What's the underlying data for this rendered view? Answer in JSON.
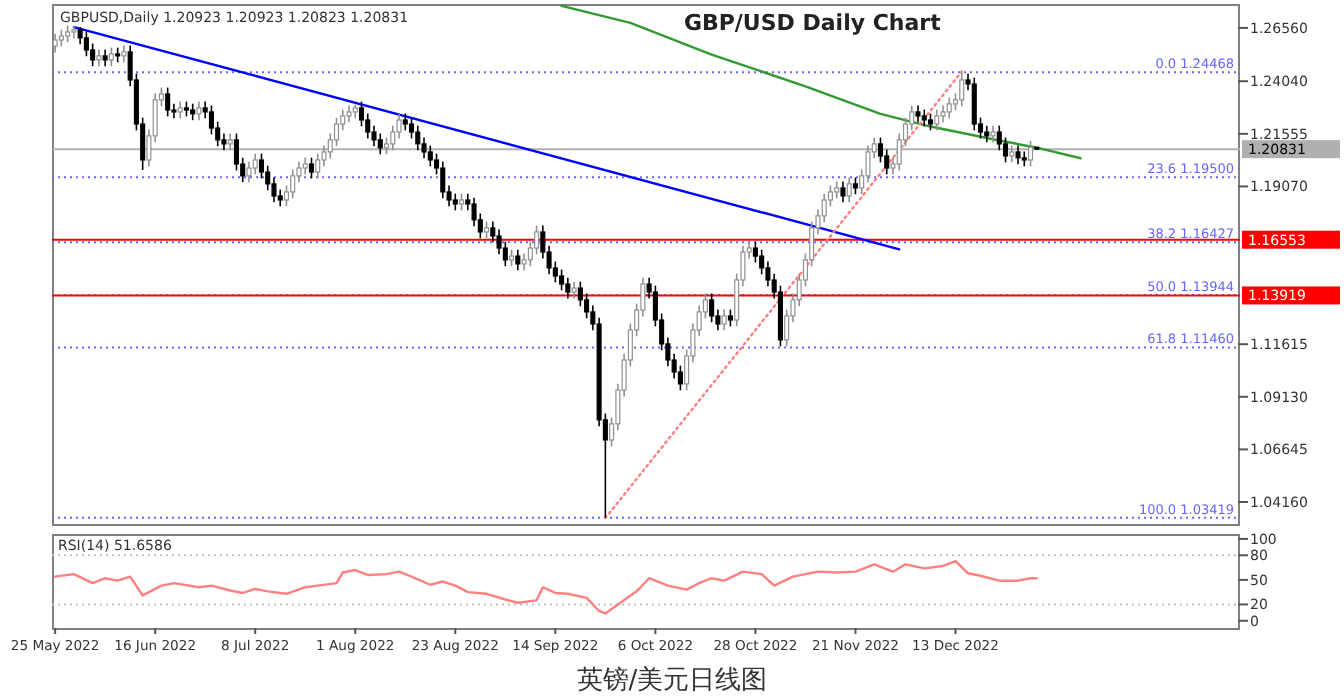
{
  "chart_data": [
    {
      "type": "candlestick",
      "title": "GBP/USD Daily Chart",
      "annotations": [
        "GBPUSD,Daily  1.20923 1.20923 1.20823 1.20831",
        "英镑/美元日线图"
      ],
      "categories": [
        null,
        null,
        null,
        null,
        null,
        null,
        null,
        null,
        null,
        null,
        null,
        null,
        null,
        null,
        null,
        null,
        null,
        null,
        null,
        null,
        null,
        null,
        null,
        null,
        null,
        null,
        null,
        null,
        null,
        null,
        null,
        null,
        null,
        null,
        null,
        null,
        null,
        null,
        null,
        null,
        null,
        null,
        null,
        null,
        null,
        null,
        null,
        null,
        null,
        null,
        null,
        null,
        null,
        null,
        null,
        null,
        null,
        null,
        null,
        null,
        null,
        null,
        null,
        null,
        null,
        null,
        null,
        null,
        null,
        null,
        null,
        null,
        null,
        null,
        null,
        null,
        null,
        null,
        null,
        null,
        null,
        null,
        null,
        null,
        null,
        null,
        null,
        null,
        null,
        null,
        null,
        null,
        null,
        null,
        null,
        null,
        null,
        null,
        null,
        null,
        null,
        null,
        null,
        null,
        null,
        null,
        null,
        null,
        null,
        null,
        null,
        null,
        null,
        null,
        null,
        null,
        null,
        null,
        null,
        null,
        null,
        null,
        null,
        null,
        null,
        null,
        null,
        null,
        null,
        null,
        null,
        null,
        null,
        null,
        null,
        null,
        null,
        null,
        null,
        null,
        null,
        null,
        null,
        null,
        null,
        null,
        null,
        null,
        null,
        null,
        null,
        null,
        null,
        null,
        null,
        null,
        null,
        null,
        null,
        null,
        null,
        null,
        null,
        null,
        null,
        null,
        null,
        null,
        null,
        null,
        null,
        null,
        null,
        null,
        null,
        null,
        null,
        null,
        null,
        null,
        null,
        null,
        null,
        null,
        null,
        null,
        null,
        null,
        null,
        null
      ],
      "ohlc": [
        [
          1.257,
          1.2629,
          1.254,
          1.2599
        ],
        [
          1.2599,
          1.2648,
          1.2569,
          1.2618
        ],
        [
          1.2618,
          1.2667,
          1.2588,
          1.2637
        ],
        [
          1.2637,
          1.2666,
          1.2607,
          1.2647
        ],
        [
          1.2647,
          1.266,
          1.2579,
          1.2609
        ],
        [
          1.2609,
          1.2639,
          1.2522,
          1.2552
        ],
        [
          1.2552,
          1.2582,
          1.2475,
          1.2505
        ],
        [
          1.2505,
          1.2554,
          1.2475,
          1.2524
        ],
        [
          1.2524,
          1.2554,
          1.2475,
          1.2505
        ],
        [
          1.2505,
          1.2563,
          1.2475,
          1.2533
        ],
        [
          1.2533,
          1.2563,
          1.2494,
          1.2524
        ],
        [
          1.2524,
          1.2573,
          1.2494,
          1.2543
        ],
        [
          1.2543,
          1.2573,
          1.238,
          1.241
        ],
        [
          1.241,
          1.244,
          1.2172,
          1.2202
        ],
        [
          1.2202,
          1.2232,
          1.1985,
          1.2032
        ],
        [
          1.2032,
          1.2176,
          1.2002,
          1.2146
        ],
        [
          1.2146,
          1.2346,
          1.2116,
          1.2316
        ],
        [
          1.2316,
          1.2374,
          1.2286,
          1.2344
        ],
        [
          1.2344,
          1.2374,
          1.2238,
          1.2268
        ],
        [
          1.2268,
          1.2298,
          1.2229,
          1.2259
        ],
        [
          1.2259,
          1.2308,
          1.2229,
          1.2278
        ],
        [
          1.2278,
          1.2308,
          1.2238,
          1.2268
        ],
        [
          1.2268,
          1.2298,
          1.222,
          1.225
        ],
        [
          1.225,
          1.2308,
          1.222,
          1.2278
        ],
        [
          1.2278,
          1.2308,
          1.2229,
          1.2259
        ],
        [
          1.2259,
          1.2289,
          1.2153,
          1.2183
        ],
        [
          1.2183,
          1.2213,
          1.2097,
          1.2127
        ],
        [
          1.2127,
          1.2157,
          1.2078,
          1.2108
        ],
        [
          1.2108,
          1.2157,
          1.2078,
          1.2127
        ],
        [
          1.2127,
          1.2157,
          1.1983,
          1.2013
        ],
        [
          1.2013,
          1.2043,
          1.1927,
          1.1957
        ],
        [
          1.1957,
          1.2024,
          1.1927,
          1.1994
        ],
        [
          1.1994,
          1.2062,
          1.1964,
          1.2032
        ],
        [
          1.2032,
          1.2062,
          1.1945,
          1.1975
        ],
        [
          1.1975,
          1.2005,
          1.1889,
          1.1919
        ],
        [
          1.1919,
          1.1949,
          1.1832,
          1.1862
        ],
        [
          1.1862,
          1.1892,
          1.1813,
          1.1843
        ],
        [
          1.1843,
          1.1911,
          1.1813,
          1.1881
        ],
        [
          1.1881,
          1.1987,
          1.1851,
          1.1957
        ],
        [
          1.1957,
          1.2024,
          1.1927,
          1.1994
        ],
        [
          1.1994,
          1.2043,
          1.1964,
          1.2013
        ],
        [
          1.2013,
          1.2043,
          1.1945,
          1.1975
        ],
        [
          1.1975,
          1.2062,
          1.1945,
          1.2032
        ],
        [
          1.2032,
          1.21,
          1.2002,
          1.207
        ],
        [
          1.207,
          1.2157,
          1.204,
          1.2127
        ],
        [
          1.2127,
          1.2232,
          1.2097,
          1.2202
        ],
        [
          1.2202,
          1.227,
          1.2172,
          1.224
        ],
        [
          1.224,
          1.2289,
          1.221,
          1.2259
        ],
        [
          1.2259,
          1.2293,
          1.2229,
          1.2278
        ],
        [
          1.2278,
          1.2308,
          1.2191,
          1.2221
        ],
        [
          1.2221,
          1.2251,
          1.2134,
          1.2164
        ],
        [
          1.2164,
          1.2194,
          1.2097,
          1.2127
        ],
        [
          1.2127,
          1.2157,
          1.2059,
          1.2089
        ],
        [
          1.2089,
          1.2138,
          1.2059,
          1.2108
        ],
        [
          1.2108,
          1.2194,
          1.2078,
          1.2164
        ],
        [
          1.2164,
          1.2251,
          1.2134,
          1.2221
        ],
        [
          1.2221,
          1.2251,
          1.2172,
          1.2202
        ],
        [
          1.2202,
          1.2232,
          1.2134,
          1.2164
        ],
        [
          1.2164,
          1.2194,
          1.2078,
          1.2108
        ],
        [
          1.2108,
          1.2138,
          1.204,
          1.207
        ],
        [
          1.207,
          1.21,
          1.2002,
          1.2032
        ],
        [
          1.2032,
          1.2062,
          1.1964,
          1.1994
        ],
        [
          1.1994,
          1.2024,
          1.1851,
          1.1881
        ],
        [
          1.1881,
          1.1911,
          1.1813,
          1.1843
        ],
        [
          1.1843,
          1.1873,
          1.1794,
          1.1824
        ],
        [
          1.1824,
          1.1873,
          1.1794,
          1.1843
        ],
        [
          1.1843,
          1.1873,
          1.1794,
          1.1824
        ],
        [
          1.1824,
          1.1854,
          1.1719,
          1.1749
        ],
        [
          1.1749,
          1.1779,
          1.1662,
          1.1692
        ],
        [
          1.1692,
          1.1741,
          1.1662,
          1.1711
        ],
        [
          1.1711,
          1.1741,
          1.1643,
          1.1673
        ],
        [
          1.1673,
          1.1703,
          1.1586,
          1.1616
        ],
        [
          1.1616,
          1.1646,
          1.153,
          1.156
        ],
        [
          1.156,
          1.1608,
          1.153,
          1.1578
        ],
        [
          1.1578,
          1.1608,
          1.1511,
          1.1541
        ],
        [
          1.1541,
          1.159,
          1.1511,
          1.156
        ],
        [
          1.156,
          1.1646,
          1.153,
          1.1616
        ],
        [
          1.1616,
          1.1722,
          1.1586,
          1.1692
        ],
        [
          1.1692,
          1.1722,
          1.1567,
          1.1597
        ],
        [
          1.1597,
          1.1627,
          1.1492,
          1.1522
        ],
        [
          1.1522,
          1.1552,
          1.1454,
          1.1484
        ],
        [
          1.1484,
          1.1514,
          1.1416,
          1.1446
        ],
        [
          1.1446,
          1.1476,
          1.1378,
          1.1408
        ],
        [
          1.1408,
          1.1457,
          1.1378,
          1.1427
        ],
        [
          1.1427,
          1.1457,
          1.1341,
          1.1371
        ],
        [
          1.1371,
          1.1401,
          1.1284,
          1.1314
        ],
        [
          1.1314,
          1.1344,
          1.1227,
          1.1257
        ],
        [
          1.1257,
          1.1287,
          1.0774,
          1.0804
        ],
        [
          1.0804,
          1.0834,
          1.0342,
          1.0709
        ],
        [
          1.0709,
          1.0815,
          1.0679,
          1.0785
        ],
        [
          1.0785,
          1.0975,
          1.0755,
          1.0945
        ],
        [
          1.0945,
          1.1117,
          1.0915,
          1.1087
        ],
        [
          1.1087,
          1.1259,
          1.1057,
          1.1229
        ],
        [
          1.1229,
          1.1353,
          1.1199,
          1.1323
        ],
        [
          1.1323,
          1.1476,
          1.1293,
          1.1446
        ],
        [
          1.1446,
          1.1476,
          1.1378,
          1.1408
        ],
        [
          1.1408,
          1.1438,
          1.1246,
          1.1276
        ],
        [
          1.1276,
          1.1306,
          1.1133,
          1.1163
        ],
        [
          1.1163,
          1.1193,
          1.1057,
          1.1087
        ],
        [
          1.1087,
          1.1117,
          1.1,
          1.103
        ],
        [
          1.103,
          1.106,
          1.0944,
          1.0974
        ],
        [
          1.0974,
          1.1136,
          1.0944,
          1.1106
        ],
        [
          1.1106,
          1.1259,
          1.1076,
          1.1229
        ],
        [
          1.1229,
          1.1344,
          1.1199,
          1.1314
        ],
        [
          1.1314,
          1.1401,
          1.1284,
          1.1371
        ],
        [
          1.1371,
          1.1401,
          1.1265,
          1.1295
        ],
        [
          1.1295,
          1.1325,
          1.1227,
          1.1257
        ],
        [
          1.1257,
          1.1325,
          1.1227,
          1.1295
        ],
        [
          1.1295,
          1.1325,
          1.1246,
          1.1276
        ],
        [
          1.1276,
          1.1495,
          1.1246,
          1.1465
        ],
        [
          1.1465,
          1.1627,
          1.1435,
          1.1597
        ],
        [
          1.1597,
          1.1646,
          1.1567,
          1.1616
        ],
        [
          1.1616,
          1.1646,
          1.1548,
          1.1578
        ],
        [
          1.1578,
          1.1608,
          1.1492,
          1.1522
        ],
        [
          1.1522,
          1.1552,
          1.1435,
          1.1465
        ],
        [
          1.1465,
          1.1495,
          1.1378,
          1.1408
        ],
        [
          1.1408,
          1.1438,
          1.1152,
          1.1182
        ],
        [
          1.1182,
          1.1325,
          1.1152,
          1.1295
        ],
        [
          1.1295,
          1.1401,
          1.1265,
          1.1371
        ],
        [
          1.1371,
          1.1495,
          1.1341,
          1.1465
        ],
        [
          1.1465,
          1.159,
          1.1435,
          1.156
        ],
        [
          1.156,
          1.1741,
          1.153,
          1.1711
        ],
        [
          1.1711,
          1.1798,
          1.1681,
          1.1768
        ],
        [
          1.1768,
          1.1873,
          1.1738,
          1.1843
        ],
        [
          1.1843,
          1.1911,
          1.1813,
          1.1881
        ],
        [
          1.1881,
          1.193,
          1.1851,
          1.19
        ],
        [
          1.19,
          1.193,
          1.1832,
          1.1862
        ],
        [
          1.1862,
          1.1949,
          1.1832,
          1.1919
        ],
        [
          1.1919,
          1.1949,
          1.187,
          1.19
        ],
        [
          1.19,
          1.1987,
          1.187,
          1.1957
        ],
        [
          1.1957,
          1.21,
          1.1927,
          1.207
        ],
        [
          1.207,
          1.2138,
          1.204,
          1.2108
        ],
        [
          1.2108,
          1.2138,
          1.2021,
          1.2051
        ],
        [
          1.2051,
          1.2081,
          1.1964,
          1.1994
        ],
        [
          1.1994,
          1.2043,
          1.1964,
          1.2013
        ],
        [
          1.2013,
          1.2157,
          1.1983,
          1.2127
        ],
        [
          1.2127,
          1.2232,
          1.2097,
          1.2202
        ],
        [
          1.2202,
          1.2289,
          1.2172,
          1.2259
        ],
        [
          1.2259,
          1.2289,
          1.221,
          1.224
        ],
        [
          1.224,
          1.227,
          1.2191,
          1.2221
        ],
        [
          1.2221,
          1.2251,
          1.2172,
          1.2202
        ],
        [
          1.2202,
          1.227,
          1.2172,
          1.224
        ],
        [
          1.224,
          1.2289,
          1.221,
          1.2259
        ],
        [
          1.2259,
          1.2327,
          1.2229,
          1.2297
        ],
        [
          1.2297,
          1.2346,
          1.2267,
          1.2316
        ],
        [
          1.2316,
          1.2446,
          1.2286,
          1.241
        ],
        [
          1.241,
          1.244,
          1.2361,
          1.2391
        ],
        [
          1.2391,
          1.2421,
          1.2172,
          1.2202
        ],
        [
          1.2202,
          1.2232,
          1.2134,
          1.2164
        ],
        [
          1.2164,
          1.2194,
          1.2116,
          1.2146
        ],
        [
          1.2146,
          1.2194,
          1.2116,
          1.2164
        ],
        [
          1.2164,
          1.2194,
          1.2078,
          1.2108
        ],
        [
          1.2108,
          1.2138,
          1.2021,
          1.2051
        ],
        [
          1.2051,
          1.21,
          1.2021,
          1.207
        ],
        [
          1.207,
          1.21,
          1.2012,
          1.2042
        ],
        [
          1.2042,
          1.2072,
          1.2002,
          1.2032
        ],
        [
          1.2032,
          1.2122,
          1.2002,
          1.2092
        ],
        [
          1.20923,
          1.20923,
          1.20823,
          1.20831
        ],
        null,
        null,
        null,
        null,
        null,
        null,
        null,
        null,
        null,
        null,
        null,
        null,
        null,
        null,
        null,
        null,
        null,
        null,
        null,
        null,
        null,
        null,
        null,
        null,
        null,
        null,
        null,
        null,
        null,
        null,
        null,
        null
      ],
      "series": [
        {
          "type": "line",
          "color": "#0000ff",
          "line_style": "solid",
          "values": [
            null,
            null,
            null,
            1.266,
            null,
            null,
            null,
            null,
            null,
            null,
            null,
            null,
            null,
            null,
            null,
            null,
            null,
            null,
            null,
            null,
            null,
            null,
            null,
            null,
            null,
            null,
            null,
            null,
            null,
            null,
            null,
            null,
            null,
            null,
            null,
            null,
            null,
            null,
            null,
            null,
            null,
            null,
            null,
            null,
            null,
            null,
            null,
            null,
            null,
            null,
            null,
            null,
            null,
            null,
            null,
            null,
            null,
            null,
            null,
            null,
            null,
            null,
            null,
            null,
            null,
            null,
            null,
            null,
            null,
            null,
            null,
            null,
            null,
            null,
            null,
            null,
            null,
            null,
            null,
            null,
            null,
            null,
            null,
            null,
            null,
            null,
            null,
            null,
            null,
            null,
            null,
            null,
            null,
            null,
            null,
            null,
            null,
            null,
            null,
            null,
            null,
            null,
            null,
            null,
            null,
            null,
            null,
            null,
            null,
            null,
            null,
            null,
            null,
            null,
            null,
            null,
            null,
            null,
            null,
            null,
            null,
            null,
            null,
            null,
            null,
            null,
            null,
            null,
            null,
            null,
            null,
            null,
            null,
            null,
            null,
            1.161,
            null,
            null,
            null,
            null,
            null,
            null,
            null,
            null,
            null,
            null,
            null,
            null,
            null,
            null,
            null,
            null,
            null,
            null,
            null,
            null,
            null,
            null,
            null,
            null,
            null,
            null,
            null,
            null,
            null,
            null,
            null,
            null,
            null,
            null,
            null,
            null,
            null,
            null,
            null,
            null,
            null,
            null,
            null,
            null,
            null,
            null,
            null,
            null,
            null,
            null,
            null,
            null,
            null,
            null
          ]
        },
        {
          "type": "line",
          "color": "#339933",
          "line_style": "solid",
          "values": [
            null,
            null,
            null,
            null,
            null,
            null,
            null,
            null,
            null,
            null,
            null,
            null,
            null,
            null,
            null,
            null,
            null,
            null,
            null,
            null,
            null,
            null,
            null,
            null,
            null,
            null,
            null,
            null,
            null,
            null,
            null,
            null,
            null,
            null,
            null,
            null,
            null,
            null,
            null,
            null,
            null,
            null,
            null,
            null,
            null,
            null,
            null,
            null,
            null,
            null,
            null,
            null,
            null,
            null,
            null,
            null,
            null,
            null,
            null,
            null,
            null,
            null,
            null,
            null,
            null,
            null,
            null,
            null,
            null,
            null,
            null,
            null,
            null,
            null,
            null,
            null,
            null,
            null,
            null,
            null,
            null,
            1.276,
            null,
            null,
            null,
            null,
            null,
            null,
            null,
            null,
            null,
            null,
            1.268,
            null,
            null,
            null,
            null,
            null,
            null,
            null,
            null,
            null,
            null,
            null,
            null,
            1.253,
            null,
            null,
            null,
            null,
            null,
            null,
            null,
            null,
            null,
            null,
            null,
            null,
            null,
            null,
            1.238,
            null,
            null,
            null,
            null,
            null,
            null,
            null,
            null,
            null,
            null,
            null,
            1.225,
            null,
            null,
            null,
            null,
            null,
            null,
            null,
            1.219,
            null,
            null,
            null,
            null,
            null,
            null,
            null,
            null,
            null,
            1.213,
            null,
            null,
            null,
            null,
            null,
            null,
            1.209,
            null,
            null,
            null,
            null,
            null,
            null,
            1.204,
            null,
            null,
            null,
            null,
            null,
            null,
            null,
            null,
            null,
            null,
            null,
            null,
            null,
            null,
            null,
            null,
            null,
            null,
            null,
            null,
            null,
            null,
            null,
            null,
            null
          ]
        },
        {
          "type": "line",
          "color": "#ff8080",
          "line_style": "dotted",
          "values": [
            null,
            null,
            null,
            null,
            null,
            null,
            null,
            null,
            null,
            null,
            null,
            null,
            null,
            null,
            null,
            null,
            null,
            null,
            null,
            null,
            null,
            null,
            null,
            null,
            null,
            null,
            null,
            null,
            null,
            null,
            null,
            null,
            null,
            null,
            null,
            null,
            null,
            null,
            null,
            null,
            null,
            null,
            null,
            null,
            null,
            null,
            null,
            null,
            null,
            null,
            null,
            null,
            null,
            null,
            null,
            null,
            null,
            null,
            null,
            null,
            null,
            null,
            null,
            null,
            null,
            null,
            null,
            null,
            null,
            null,
            null,
            null,
            null,
            null,
            null,
            null,
            null,
            null,
            null,
            null,
            null,
            null,
            null,
            null,
            null,
            null,
            null,
            null,
            1.034,
            null,
            null,
            null,
            null,
            null,
            null,
            null,
            null,
            null,
            null,
            null,
            null,
            null,
            null,
            null,
            null,
            null,
            null,
            null,
            null,
            null,
            null,
            null,
            null,
            null,
            null,
            null,
            null,
            null,
            null,
            null,
            null,
            null,
            null,
            null,
            null,
            null,
            null,
            null,
            null,
            null,
            null,
            null,
            null,
            null,
            null,
            null,
            null,
            null,
            null,
            null,
            null,
            null,
            null,
            null,
            null,
            1.245,
            null,
            null,
            null,
            null,
            null,
            null,
            null,
            null,
            null,
            null,
            null,
            null,
            null,
            null,
            null,
            null,
            null,
            null,
            null,
            null,
            null,
            null,
            null,
            null,
            null,
            null,
            null,
            null,
            null,
            null,
            null,
            null,
            null,
            null,
            null,
            null,
            null,
            null,
            null,
            null,
            null,
            null,
            null,
            null
          ]
        }
      ],
      "ylim": [
        1.0312,
        1.2769
      ],
      "tick_labels": "y",
      "yticks": [
        {
          "value": 1.2656,
          "label": "1.26560"
        },
        {
          "value": 1.2404,
          "label": "1.24040"
        },
        {
          "value": 1.21555,
          "label": "1.21555"
        },
        {
          "value": 1.1907,
          "label": "1.19070"
        },
        {
          "value": 1.11615,
          "label": "1.11615"
        },
        {
          "value": 1.0913,
          "label": "1.09130"
        },
        {
          "value": 1.06645,
          "label": "1.06645"
        },
        {
          "value": 1.0416,
          "label": "1.04160"
        }
      ],
      "ref_lines": [
        {
          "axis": "y",
          "value": 1.24468,
          "label": "0.0 1.24468",
          "color": "#6666ff",
          "line_style": "dotted"
        },
        {
          "axis": "y",
          "value": 1.195,
          "label": "23.6 1.19500",
          "color": "#6666ff",
          "line_style": "dotted"
        },
        {
          "axis": "y",
          "value": 1.16427,
          "label": "38.2 1.16427",
          "color": "#6666ff",
          "line_style": "dotted"
        },
        {
          "axis": "y",
          "value": 1.13944,
          "label": "50.0 1.13944",
          "color": "#6666ff",
          "line_style": "dotted"
        },
        {
          "axis": "y",
          "value": 1.1146,
          "label": "61.8 1.11460",
          "color": "#6666ff",
          "line_style": "dotted"
        },
        {
          "axis": "y",
          "value": 1.03419,
          "label": "100.0 1.03419",
          "color": "#6666ff",
          "line_style": "dotted"
        },
        {
          "axis": "y",
          "value": 1.16553,
          "label": "1.16553",
          "color": "#ff0000",
          "line_style": "solid"
        },
        {
          "axis": "y",
          "value": 1.13919,
          "label": "1.13919",
          "color": "#ff0000",
          "line_style": "solid"
        },
        {
          "axis": "y",
          "value": 1.20831,
          "label": "1.20831",
          "color": "#b0b0b0",
          "line_style": "solid"
        }
      ]
    },
    {
      "type": "line",
      "title": "RSI(14) 51.6586",
      "categories": [
        "25 May 2022",
        null,
        null,
        null,
        null,
        null,
        null,
        null,
        null,
        null,
        null,
        null,
        null,
        null,
        null,
        null,
        "16 Jun 2022",
        null,
        null,
        null,
        null,
        null,
        null,
        null,
        null,
        null,
        null,
        null,
        null,
        null,
        null,
        null,
        "8 Jul 2022",
        null,
        null,
        null,
        null,
        null,
        null,
        null,
        null,
        null,
        null,
        null,
        null,
        null,
        null,
        null,
        "1 Aug 2022",
        null,
        null,
        null,
        null,
        null,
        null,
        null,
        null,
        null,
        null,
        null,
        null,
        null,
        null,
        null,
        "23 Aug 2022",
        null,
        null,
        null,
        null,
        null,
        null,
        null,
        null,
        null,
        null,
        null,
        null,
        null,
        null,
        null,
        "14 Sep 2022",
        null,
        null,
        null,
        null,
        null,
        null,
        null,
        null,
        null,
        null,
        null,
        null,
        null,
        null,
        null,
        "6 Oct 2022",
        null,
        null,
        null,
        null,
        null,
        null,
        null,
        null,
        null,
        null,
        null,
        null,
        null,
        null,
        null,
        "28 Oct 2022",
        null,
        null,
        null,
        null,
        null,
        null,
        null,
        null,
        null,
        null,
        null,
        null,
        null,
        null,
        null,
        "21 Nov 2022",
        null,
        null,
        null,
        null,
        null,
        null,
        null,
        null,
        null,
        null,
        null,
        null,
        null,
        null,
        null,
        "13 Dec 2022",
        null,
        null,
        null,
        null,
        null,
        null,
        null,
        null,
        null,
        null,
        null,
        null,
        null,
        null,
        null,
        null,
        null,
        null,
        null,
        null,
        null,
        null,
        null,
        null,
        null,
        null,
        null,
        null,
        null,
        null,
        null,
        null,
        null,
        null,
        null,
        null,
        null,
        null,
        null,
        null,
        null,
        null,
        null,
        null,
        null
      ],
      "series": [
        {
          "color": "#ff8080",
          "values": [
            54,
            null,
            null,
            57,
            null,
            null,
            46,
            null,
            52,
            null,
            49,
            null,
            54,
            null,
            31,
            null,
            null,
            43,
            null,
            46,
            null,
            null,
            null,
            41,
            null,
            43,
            null,
            null,
            37,
            null,
            34,
            null,
            39,
            null,
            36,
            null,
            null,
            33,
            null,
            null,
            41,
            null,
            43,
            null,
            null,
            46,
            59,
            null,
            62,
            null,
            56,
            null,
            null,
            57,
            null,
            60,
            null,
            54,
            null,
            null,
            44,
            null,
            48,
            null,
            43,
            null,
            35,
            null,
            null,
            33,
            null,
            null,
            26,
            null,
            22,
            null,
            null,
            25,
            41,
            null,
            34,
            null,
            33,
            null,
            null,
            28,
            null,
            12,
            9,
            null,
            20,
            null,
            null,
            36,
            null,
            52,
            null,
            null,
            43,
            null,
            null,
            38,
            null,
            46,
            null,
            52,
            null,
            49,
            null,
            null,
            60,
            null,
            null,
            57,
            null,
            43,
            null,
            null,
            54,
            null,
            null,
            null,
            60,
            null,
            null,
            59,
            null,
            null,
            60,
            null,
            null,
            69,
            null,
            null,
            60,
            null,
            69,
            null,
            null,
            64,
            null,
            null,
            67,
            null,
            73,
            null,
            58,
            null,
            55,
            null,
            null,
            49,
            null,
            null,
            49,
            null,
            52,
            52,
            null,
            null,
            null,
            null,
            null,
            null,
            null,
            null,
            null,
            null,
            null,
            null,
            null,
            null,
            null,
            null,
            null,
            null,
            null,
            null,
            null,
            null,
            null,
            null,
            null,
            null,
            null,
            null,
            null,
            null,
            null,
            null
          ]
        }
      ],
      "ylim": [
        -8.8,
        106
      ],
      "yticks": [
        100,
        80,
        50,
        20,
        0
      ],
      "ref_lines": [
        {
          "axis": "y",
          "value": 80,
          "color": "#c0c0c0",
          "line_style": "dotted"
        },
        {
          "axis": "y",
          "value": 20,
          "color": "#c0c0c0",
          "line_style": "dotted"
        }
      ]
    }
  ]
}
